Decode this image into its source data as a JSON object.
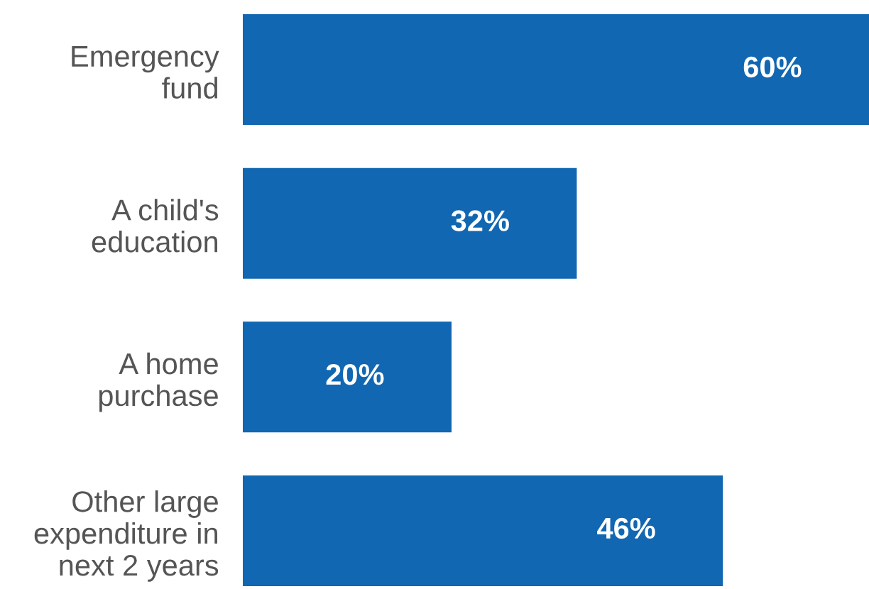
{
  "chart_data": {
    "type": "bar",
    "orientation": "horizontal",
    "categories": [
      "Emergency\nfund",
      "A child's\neducation",
      "A home\npurchase",
      "Other large\nexpenditure in\nnext 2 years"
    ],
    "values": [
      60,
      32,
      20,
      46
    ],
    "value_labels": [
      "60%",
      "32%",
      "20%",
      "46%"
    ],
    "color": "#1167b1",
    "tick_labels": "y",
    "grid": false,
    "legend": false
  }
}
